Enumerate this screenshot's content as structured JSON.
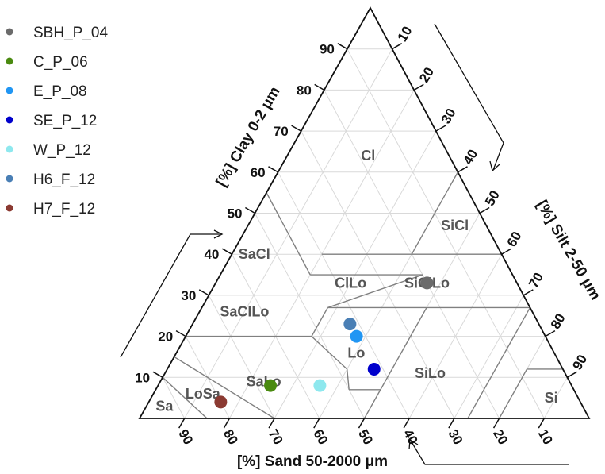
{
  "chart_data": {
    "type": "scatter",
    "subtype": "ternary-texture-triangle",
    "axes": {
      "clay": {
        "label": "[%] Clay 0-2 μm",
        "ticks": [
          10,
          20,
          30,
          40,
          50,
          60,
          70,
          80,
          90
        ],
        "range": [
          0,
          100
        ]
      },
      "silt": {
        "label": "[%] Silt 2-50 μm",
        "ticks": [
          10,
          20,
          30,
          40,
          50,
          60,
          70,
          80,
          90
        ],
        "range": [
          0,
          100
        ]
      },
      "sand": {
        "label": "[%] Sand 50-2000 μm",
        "ticks": [
          90,
          80,
          70,
          60,
          50,
          40,
          30,
          20,
          10
        ],
        "range": [
          0,
          100
        ]
      }
    },
    "grid": true,
    "legend_position": "top-left",
    "regions": [
      "Cl",
      "SiCl",
      "SaCl",
      "ClLo",
      "SiClLo",
      "SaClLo",
      "Lo",
      "SiLo",
      "SaLo",
      "LoSa",
      "Sa",
      "Si"
    ],
    "series": [
      {
        "name": "SBH_P_04",
        "color": "#6b6b6b",
        "clay": 33,
        "silt": 47
      },
      {
        "name": "C_P_06",
        "color": "#4a8a10",
        "clay": 8,
        "silt": 25
      },
      {
        "name": "E_P_08",
        "color": "#2196f3",
        "clay": 20,
        "silt": 38
      },
      {
        "name": "SE_P_12",
        "color": "#0000cc",
        "clay": 12,
        "silt": 46
      },
      {
        "name": "W_P_12",
        "color": "#8ee8ee",
        "clay": 8,
        "silt": 36
      },
      {
        "name": "H6_F_12",
        "color": "#4a7fb5",
        "clay": 23,
        "silt": 35
      },
      {
        "name": "H7_F_12",
        "color": "#8b3a32",
        "clay": 4,
        "silt": 16
      }
    ]
  }
}
